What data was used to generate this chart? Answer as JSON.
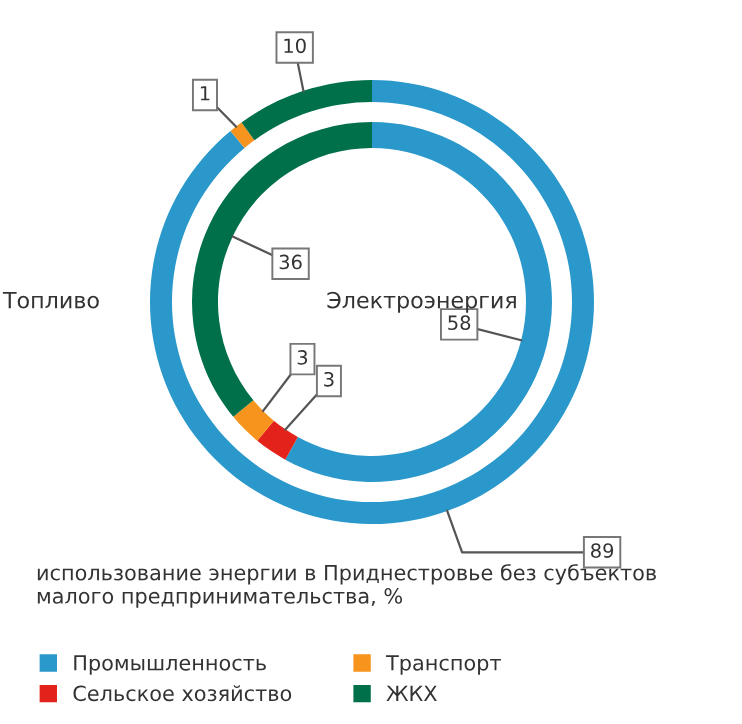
{
  "chart_data": {
    "type": "donut",
    "categories": [
      "Промышленность",
      "Сельское хозяйство",
      "Транспорт",
      "ЖКХ"
    ],
    "colors": [
      "#2a98cb",
      "#e3231b",
      "#f7941d",
      "#00704a"
    ],
    "series": [
      {
        "name": "Топливо",
        "values": [
          89,
          0,
          1,
          10
        ],
        "value_labels": [
          "89",
          null,
          "1",
          "10"
        ]
      },
      {
        "name": "Электроэнергия",
        "values": [
          58,
          3,
          3,
          36
        ],
        "value_labels": [
          "58",
          "3",
          "3",
          "36"
        ]
      }
    ],
    "annotations": [
      "использование энергии в Приднестровье без субъектов малого предпринимательства, %"
    ],
    "legend": "bottom"
  }
}
